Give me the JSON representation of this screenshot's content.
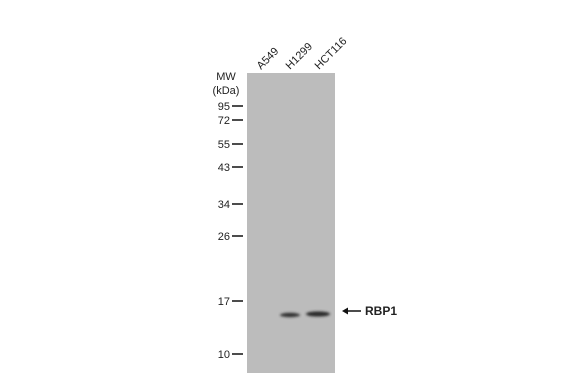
{
  "lanes": [
    "A549",
    "H1299",
    "HCT116"
  ],
  "mw_label": {
    "line1": "MW",
    "line2": "(kDa)"
  },
  "markers": [
    "95",
    "72",
    "55",
    "43",
    "34",
    "26",
    "17",
    "10"
  ],
  "band_label": "RBP1"
}
